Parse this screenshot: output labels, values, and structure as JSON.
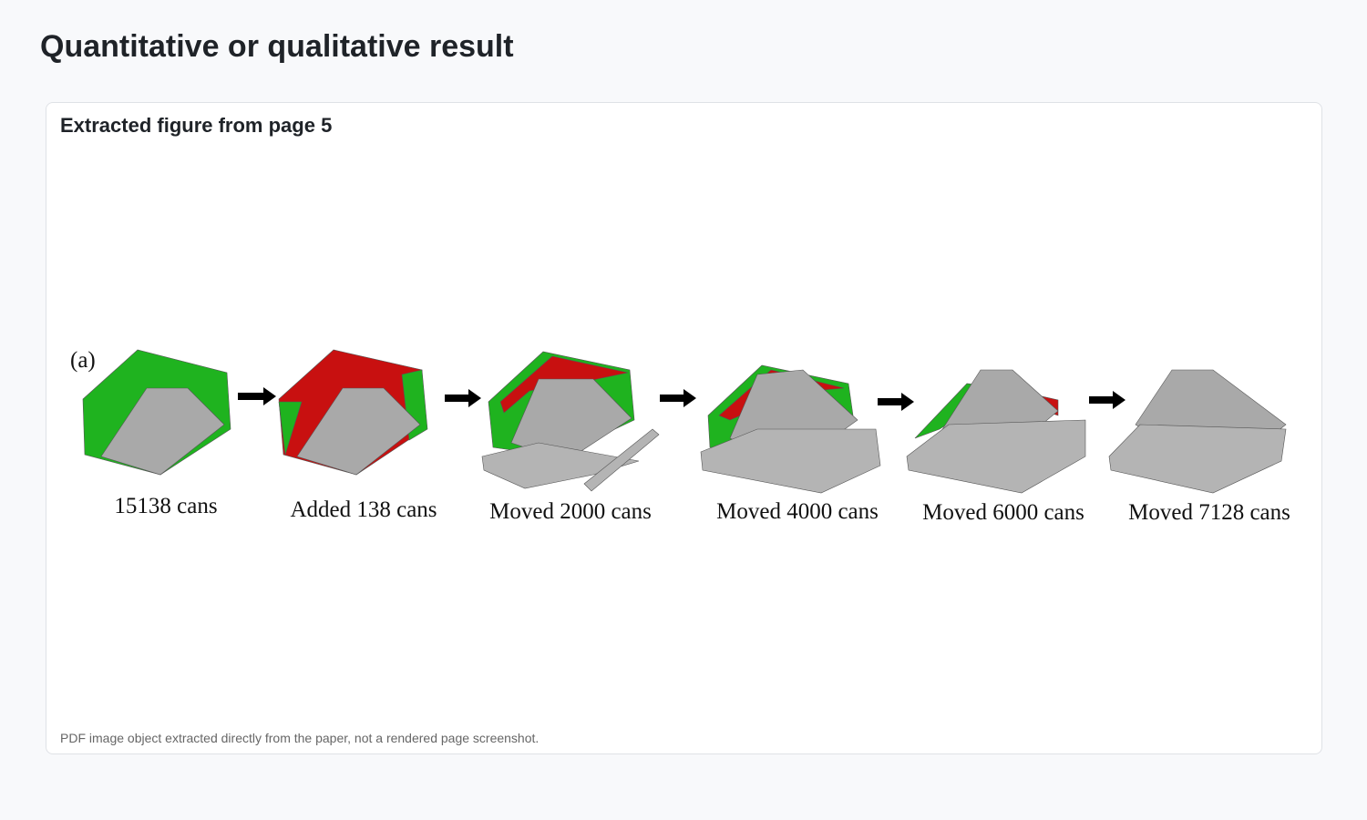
{
  "header": {
    "title": "Quantitative or qualitative result"
  },
  "card": {
    "title": "Extracted figure from page 5",
    "figure": {
      "panel_label": "(a)",
      "steps": [
        {
          "caption": "15138 cans"
        },
        {
          "caption": "Added 138 cans"
        },
        {
          "caption": "Moved 2000 cans"
        },
        {
          "caption": "Moved 4000 cans"
        },
        {
          "caption": "Moved 6000 cans"
        },
        {
          "caption": "Moved 7128 cans"
        }
      ]
    },
    "note": "PDF image object extracted directly from the paper, not a rendered page screenshot."
  }
}
